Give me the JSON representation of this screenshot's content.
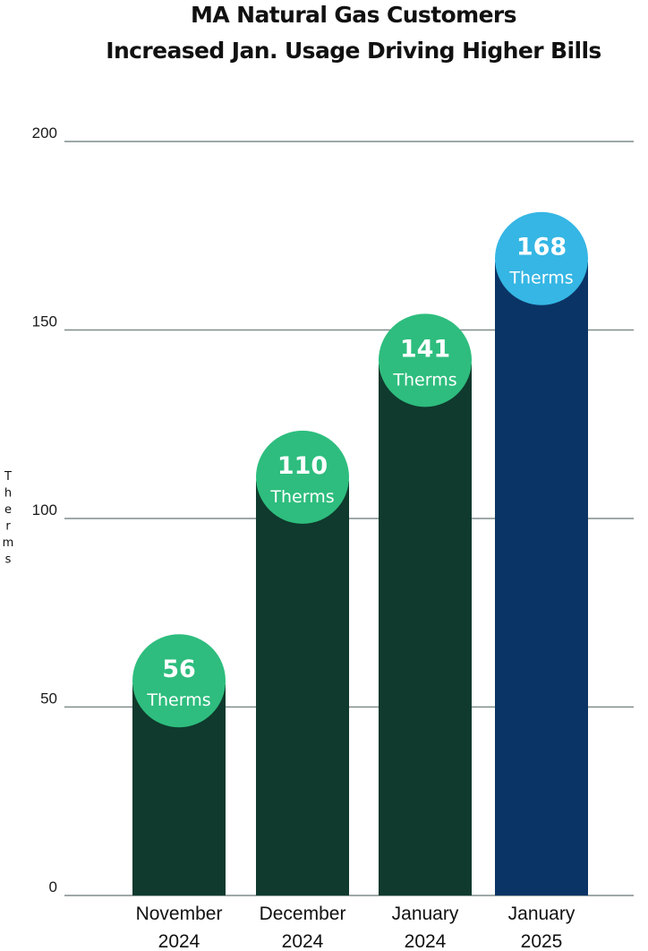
{
  "chart_data": {
    "type": "bar",
    "title": "MA Natural Gas Customers Increased Jan. Usage Driving Higher Bills",
    "title_lines": [
      "MA Natural Gas Customers",
      "Increased Jan. Usage Driving Higher Bills"
    ],
    "ylabel": "Therms",
    "ylim": [
      0,
      200
    ],
    "yticks": [
      0,
      50,
      100,
      150,
      200
    ],
    "grid": true,
    "categories": [
      [
        "November",
        "2024"
      ],
      [
        "December",
        "2024"
      ],
      [
        "January",
        "2024"
      ],
      [
        "January",
        "2025"
      ]
    ],
    "values": [
      56,
      110,
      141,
      168
    ],
    "data_label_unit": "Therms",
    "bar_colors": [
      "#0f3a2d",
      "#0f3a2d",
      "#0f3a2d",
      "#0b3466"
    ],
    "bubble_colors": [
      "#2ebd7e",
      "#2ebd7e",
      "#2ebd7e",
      "#35b6e4"
    ],
    "grid_color": "#7f8c8a"
  }
}
